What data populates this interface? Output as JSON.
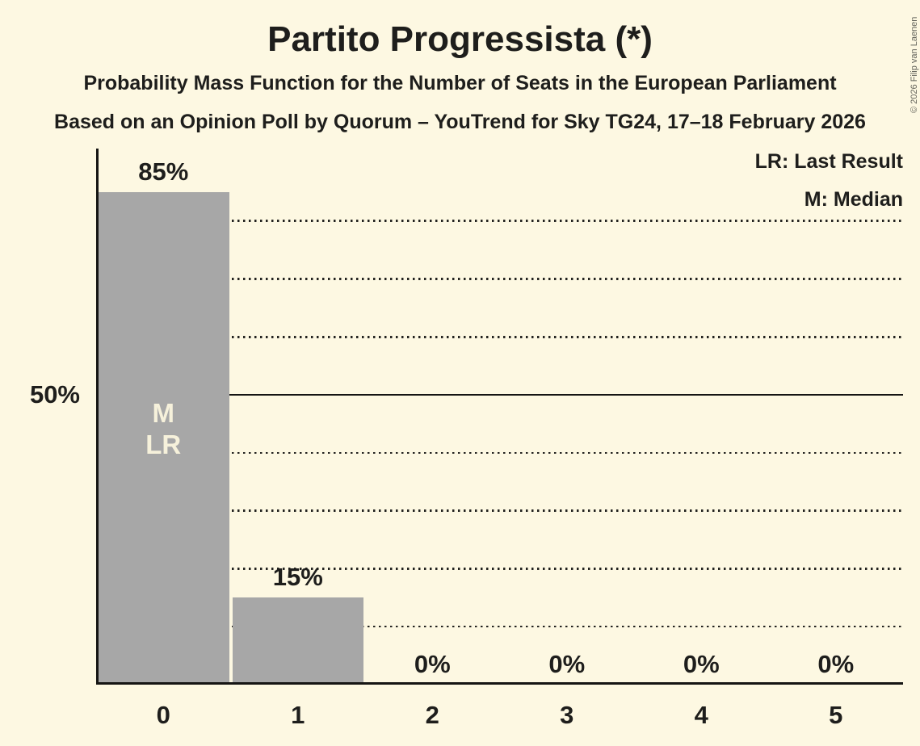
{
  "copyright": "© 2026 Filip van Laenen",
  "legend": {
    "lr": "LR: Last Result",
    "m": "M: Median"
  },
  "chart_data": {
    "type": "bar",
    "title": "Partito Progressista (*)",
    "subtitle": "Probability Mass Function for the Number of Seats in the European Parliament",
    "source_line": "Based on an Opinion Poll by Quorum – YouTrend for Sky TG24, 17–18 February 2026",
    "xlabel": "",
    "ylabel": "",
    "categories": [
      "0",
      "1",
      "2",
      "3",
      "4",
      "5"
    ],
    "values": [
      85,
      15,
      0,
      0,
      0,
      0
    ],
    "value_labels": [
      "85%",
      "15%",
      "0%",
      "0%",
      "0%",
      "0%"
    ],
    "bar_annotations": [
      [
        "M",
        "LR"
      ],
      [],
      [],
      [],
      [],
      []
    ],
    "y_tick": 50,
    "y_tick_label": "50%",
    "gridlines_pct": [
      10,
      20,
      30,
      40,
      50,
      60,
      70,
      80
    ],
    "solid_gridline_pct": 50,
    "ylim": [
      0,
      92.5
    ],
    "grid": true,
    "legend_position": "top-right",
    "colors": {
      "background": "#FDF8E2",
      "bar": "#A7A7A7",
      "bar_label": "#F6F1DB",
      "text": "#1E1E1C"
    }
  }
}
